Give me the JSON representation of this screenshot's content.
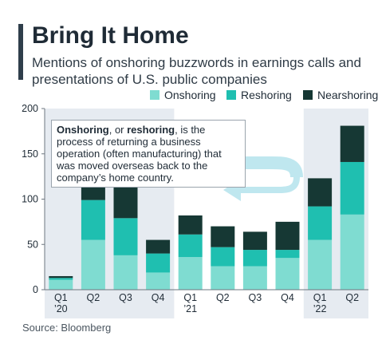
{
  "header": {
    "title": "Bring It Home",
    "subtitle": "Mentions of onshoring buzzwords in earnings calls and presentations of U.S. public companies"
  },
  "annotation": {
    "term1": "Onshoring",
    "connector": ", or ",
    "term2": "reshoring",
    "rest": ", is the process of returning a business operation (often manufacturing) that was moved overseas back to the company’s home country."
  },
  "footer": {
    "source": "Source: Bloomberg"
  },
  "colors": {
    "onshoring": "#7fdcd1",
    "reshoring": "#1fbfb0",
    "nearshoring": "#163834",
    "band": "#e6ebf1",
    "axis": "#6d7780",
    "arrow": "#bfe7ef"
  },
  "chart_data": {
    "type": "bar",
    "stacked": true,
    "categories": [
      "Q1 ’20",
      "Q2",
      "Q3",
      "Q4",
      "Q1 ’21",
      "Q2",
      "Q3",
      "Q4",
      "Q1 ’22",
      "Q2"
    ],
    "series": [
      {
        "name": "Onshoring",
        "values": [
          11,
          55,
          38,
          19,
          36,
          26,
          26,
          35,
          55,
          83
        ]
      },
      {
        "name": "Reshoring",
        "values": [
          2,
          44,
          41,
          21,
          25,
          21,
          18,
          9,
          37,
          58
        ]
      },
      {
        "name": "Nearshoring",
        "values": [
          2,
          23,
          40,
          15,
          21,
          23,
          20,
          31,
          31,
          40
        ]
      }
    ],
    "ylim": [
      0,
      200
    ],
    "yticks": [
      0,
      50,
      100,
      150,
      200
    ],
    "legend_position": "top-right",
    "shaded_years": [
      "2020",
      "2022"
    ]
  }
}
